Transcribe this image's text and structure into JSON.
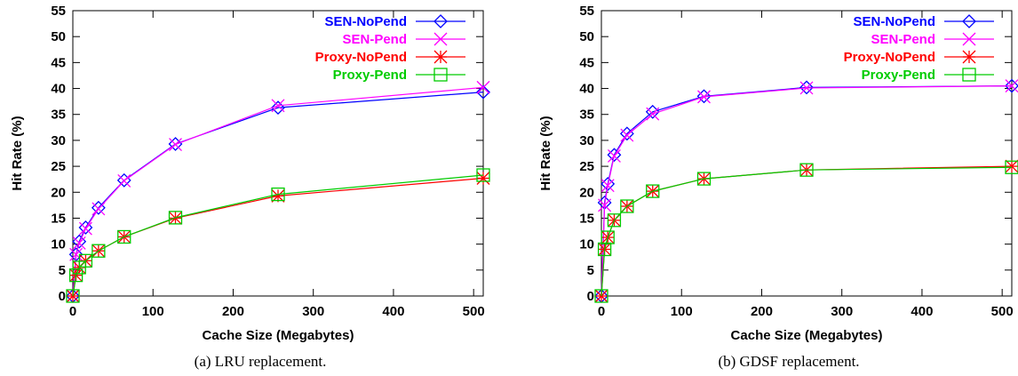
{
  "chart_data": [
    {
      "type": "line",
      "caption": "(a) LRU replacement.",
      "xlabel": "Cache Size (Megabytes)",
      "ylabel": "Hit Rate (%)",
      "xlim": [
        0,
        512
      ],
      "ylim": [
        0,
        55
      ],
      "xticks": [
        0,
        100,
        200,
        300,
        400,
        500
      ],
      "yticks": [
        0,
        5,
        10,
        15,
        20,
        25,
        30,
        35,
        40,
        45,
        50,
        55
      ],
      "grid": false,
      "legend_position": "top-right",
      "x": [
        0,
        4,
        8,
        16,
        32,
        64,
        128,
        256,
        512
      ],
      "series": [
        {
          "name": "SEN-NoPend",
          "color": "#0000ff",
          "marker": "diamond",
          "values": [
            0,
            8,
            10.5,
            13.2,
            17,
            22.3,
            29.3,
            36.3,
            39.3
          ]
        },
        {
          "name": "SEN-Pend",
          "color": "#ff00ff",
          "marker": "x",
          "values": [
            0,
            8,
            10.2,
            13,
            16.8,
            22.2,
            29.2,
            36.7,
            40.2
          ]
        },
        {
          "name": "Proxy-NoPend",
          "color": "#ff0000",
          "marker": "star",
          "values": [
            0,
            4,
            5.5,
            6.8,
            8.7,
            11.4,
            15,
            19.3,
            22.7
          ]
        },
        {
          "name": "Proxy-Pend",
          "color": "#00cc00",
          "marker": "square",
          "values": [
            0,
            4,
            5.5,
            6.8,
            8.7,
            11.4,
            15.1,
            19.6,
            23.3
          ]
        }
      ]
    },
    {
      "type": "line",
      "caption": "(b) GDSF replacement.",
      "xlabel": "Cache Size (Megabytes)",
      "ylabel": "Hit Rate (%)",
      "xlim": [
        0,
        512
      ],
      "ylim": [
        0,
        55
      ],
      "xticks": [
        0,
        100,
        200,
        300,
        400,
        500
      ],
      "yticks": [
        0,
        5,
        10,
        15,
        20,
        25,
        30,
        35,
        40,
        45,
        50,
        55
      ],
      "grid": false,
      "legend_position": "top-right",
      "x": [
        0,
        4,
        8,
        16,
        32,
        64,
        128,
        256,
        512
      ],
      "series": [
        {
          "name": "SEN-NoPend",
          "color": "#0000ff",
          "marker": "diamond",
          "values": [
            0,
            18,
            21.6,
            27.2,
            31.3,
            35.5,
            38.5,
            40.2,
            40.5
          ]
        },
        {
          "name": "SEN-Pend",
          "color": "#ff00ff",
          "marker": "x",
          "values": [
            0,
            17.5,
            21.3,
            27,
            31,
            35.1,
            38.4,
            40.1,
            40.5
          ]
        },
        {
          "name": "Proxy-NoPend",
          "color": "#ff0000",
          "marker": "star",
          "values": [
            0,
            9,
            11.3,
            14.6,
            17.3,
            20.2,
            22.6,
            24.3,
            25
          ]
        },
        {
          "name": "Proxy-Pend",
          "color": "#00cc00",
          "marker": "square",
          "values": [
            0,
            9,
            11.3,
            14.6,
            17.3,
            20.2,
            22.6,
            24.3,
            24.8
          ]
        }
      ]
    }
  ]
}
